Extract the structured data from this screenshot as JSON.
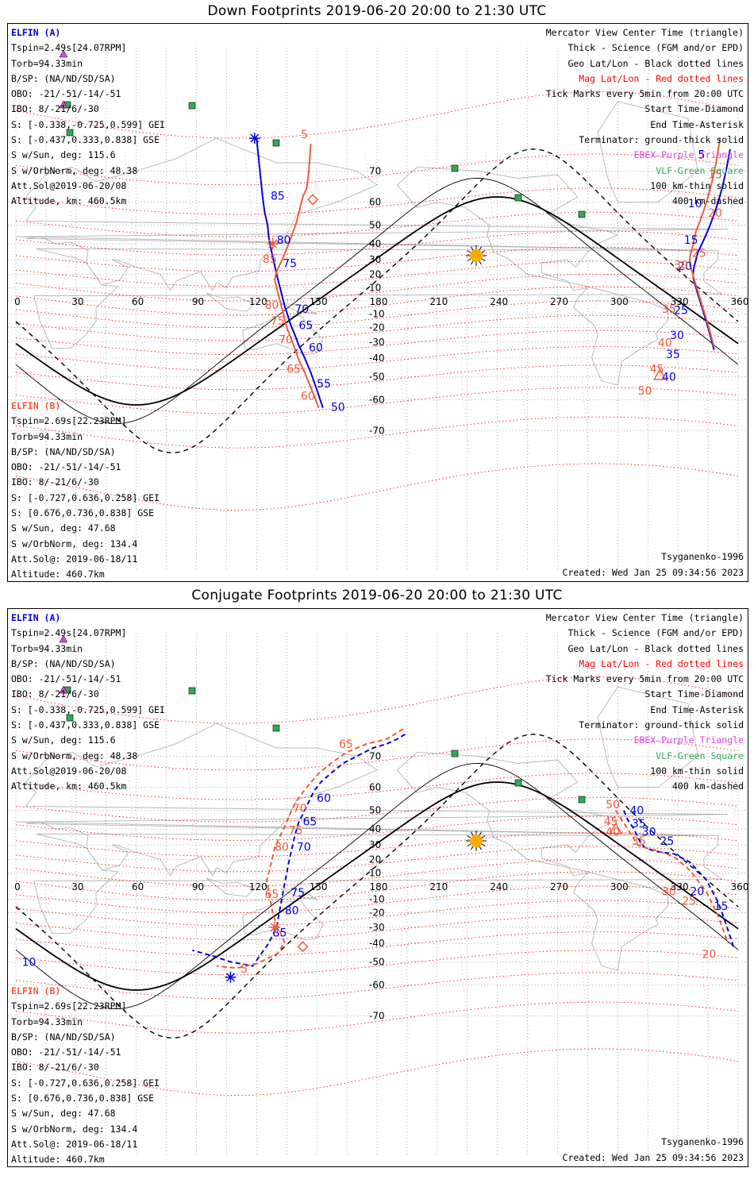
{
  "colors": {
    "elfin_a": "#0000dd",
    "elfin_b": "#f05a3c",
    "geo_grid": "#000000",
    "mag_grid": "#ff0000",
    "ebex": "#dd44dd",
    "vlf": "#33aa55",
    "sun": "#ffaa00",
    "land": "#b4b4b4"
  },
  "common": {
    "lon_ticks": [
      "0",
      "30",
      "60",
      "90",
      "120",
      "150",
      "180",
      "210",
      "240",
      "270",
      "300",
      "330",
      "360"
    ],
    "lat_ticks": [
      "70",
      "60",
      "50",
      "40",
      "30",
      "20",
      "10",
      "-10",
      "-20",
      "-30",
      "-40",
      "-50",
      "-60",
      "-70"
    ],
    "legend": [
      {
        "text": "Mercator View Center Time (triangle)",
        "color": "#000000"
      },
      {
        "text": "Thick - Science (FGM and/or EPD)",
        "color": "#000000"
      },
      {
        "text": "Geo Lat/Lon - Black dotted lines",
        "color": "#000000"
      },
      {
        "text": "Mag Lat/Lon - Red dotted lines",
        "color": "#ff0000"
      },
      {
        "text": "Tick Marks every 5min from 20:00 UTC",
        "color": "#000000"
      },
      {
        "text": "Start Time-Diamond",
        "color": "#000000"
      },
      {
        "text": "End Time-Asterisk",
        "color": "#000000"
      },
      {
        "text": "Terminator: ground-thick solid",
        "color": "#000000"
      },
      {
        "text": "EBEX-Purple Triangle",
        "color": "#dd44dd"
      },
      {
        "text": "VLF-Green Square",
        "color": "#33aa55"
      },
      {
        "text": "100 km-thin solid",
        "color": "#000000"
      },
      {
        "text": "400 km-dashed",
        "color": "#000000"
      }
    ],
    "elfin_a_info": {
      "header": "ELFIN (A)",
      "lines": [
        "Tspin=2.49s[24.07RPM]",
        "Torb=94.33min",
        "B/SP: (NA/ND/SD/SA)",
        "OBO: -21/-51/-14/-51",
        "IBO: 8/-21/6/-30",
        "S: [-0.338,-0.725,0.599] GEI",
        "S: [-0.437,0.333,0.838] GSE",
        "S w/Sun, deg: 115.6",
        "S w/OrbNorm, deg: 48.38",
        "Att.Sol@2019-06-20/08",
        "Altitude, km: 460.5km"
      ]
    },
    "elfin_b_info": {
      "header": "ELFIN (B)",
      "lines": [
        "Tspin=2.69s[22.23RPM]",
        "Torb=94.33min",
        "B/SP: (NA/ND/SD/SA)",
        "OBO: -21/-51/-14/-51",
        "IBO: 8/-21/6/-30",
        "S: [-0.727,0.636,0.258] GEI",
        "S: [0.676,0.736,0.838] GSE",
        "S w/Sun, deg: 47.68",
        "S w/OrbNorm, deg: 134.4",
        "Att.Sol@: 2019-06-18/11",
        "Altitude: 460.7km"
      ]
    },
    "model": "Tsyganenko-1996",
    "created": "Created: Wed Jan 25 09:34:56 2023"
  },
  "panels": [
    {
      "title": "Down Footprints 2019-06-20 20:00 to 21:30 UTC",
      "tracks": {
        "a1": {
          "lon": [
            120,
            121,
            122,
            123,
            124,
            125.5,
            126,
            127,
            128,
            129,
            130,
            131,
            132,
            133,
            134,
            135.5,
            137,
            139,
            141,
            144,
            147,
            150,
            153
          ],
          "lat": [
            77,
            73,
            68,
            62,
            56,
            50,
            44,
            38,
            32,
            26,
            20,
            14,
            8,
            2,
            -4,
            -11,
            -18,
            -25,
            -32,
            -40,
            -48,
            -56,
            -63
          ]
        },
        "b1": {
          "lon": [
            147,
            146,
            145,
            143,
            140,
            138,
            136,
            134,
            132,
            130,
            129,
            130,
            131,
            132,
            133,
            134,
            135,
            137,
            139,
            141,
            144,
            147,
            151
          ],
          "lat": [
            76,
            70,
            65,
            62,
            52,
            46,
            40,
            34,
            28,
            22,
            16,
            10,
            4,
            -2,
            -8,
            -14,
            -20,
            -27,
            -34,
            -41,
            -48,
            -55,
            -63
          ]
        },
        "a2": {
          "lon": [
            356,
            354,
            352,
            350,
            348,
            346,
            344,
            342,
            340,
            339,
            338,
            337.5,
            338,
            339,
            340,
            341,
            342,
            343,
            344,
            345,
            346,
            347,
            348
          ],
          "lat": [
            75,
            70,
            65,
            60,
            55,
            50,
            45,
            40,
            35,
            30,
            25,
            20,
            15,
            10,
            5,
            0,
            -5,
            -10,
            -15,
            -20,
            -25,
            -30,
            -35
          ]
        },
        "b2": {
          "lon": [
            351,
            349,
            347,
            345,
            343,
            341,
            339,
            338,
            337,
            336,
            336,
            337,
            338,
            339,
            340,
            341,
            342,
            343,
            344,
            345,
            346,
            347,
            348
          ],
          "lat": [
            77,
            72,
            67,
            62,
            57,
            52,
            47,
            42,
            37,
            32,
            27,
            22,
            17,
            12,
            7,
            2,
            -3,
            -8,
            -13,
            -18,
            -23,
            -28,
            -33
          ]
        }
      },
      "tick_labels": [
        {
          "text": "85",
          "color": "a",
          "lon": 127,
          "lat": 61
        },
        {
          "text": "80",
          "color": "a",
          "lon": 130,
          "lat": 40
        },
        {
          "text": "75",
          "color": "a",
          "lon": 133,
          "lat": 25
        },
        {
          "text": "70",
          "color": "a",
          "lon": 139,
          "lat": -9
        },
        {
          "text": "65",
          "color": "a",
          "lon": 141,
          "lat": -21
        },
        {
          "text": "60",
          "color": "a",
          "lon": 146,
          "lat": -36
        },
        {
          "text": "55",
          "color": "a",
          "lon": 150,
          "lat": -55
        },
        {
          "text": "50",
          "color": "a",
          "lon": 157,
          "lat": -64
        },
        {
          "text": "85",
          "color": "b",
          "lon": 123,
          "lat": 28
        },
        {
          "text": "80",
          "color": "b",
          "lon": 124,
          "lat": -6
        },
        {
          "text": "75",
          "color": "b",
          "lon": 127,
          "lat": -18
        },
        {
          "text": "70",
          "color": "b",
          "lon": 131,
          "lat": -31
        },
        {
          "text": "65",
          "color": "b",
          "lon": 135,
          "lat": -48
        },
        {
          "text": "60",
          "color": "b",
          "lon": 142,
          "lat": -60
        },
        {
          "text": "5",
          "color": "b",
          "lon": 142,
          "lat": 77
        },
        {
          "text": "5",
          "color": "a",
          "lon": 340,
          "lat": 73
        },
        {
          "text": "10",
          "color": "a",
          "lon": 335,
          "lat": 58
        },
        {
          "text": "15",
          "color": "a",
          "lon": 333,
          "lat": 40
        },
        {
          "text": "20",
          "color": "a",
          "lon": 330,
          "lat": 23
        },
        {
          "text": "25",
          "color": "a",
          "lon": 328,
          "lat": -10
        },
        {
          "text": "30",
          "color": "a",
          "lon": 326,
          "lat": -28
        },
        {
          "text": "35",
          "color": "a",
          "lon": 324,
          "lat": -40
        },
        {
          "text": "40",
          "color": "a",
          "lon": 322,
          "lat": -52
        },
        {
          "text": "15",
          "color": "b",
          "lon": 345,
          "lat": 68
        },
        {
          "text": "20",
          "color": "b",
          "lon": 345,
          "lat": 54
        },
        {
          "text": "25",
          "color": "b",
          "lon": 337,
          "lat": 32
        },
        {
          "text": "30",
          "color": "b",
          "lon": 328,
          "lat": 24
        },
        {
          "text": "35",
          "color": "b",
          "lon": 322,
          "lat": -9
        },
        {
          "text": "40",
          "color": "b",
          "lon": 320,
          "lat": -33
        },
        {
          "text": "45",
          "color": "b",
          "lon": 316,
          "lat": -48
        },
        {
          "text": "50",
          "color": "b",
          "lon": 310,
          "lat": -58
        }
      ],
      "markers": {
        "diamond": [
          {
            "lon": 148,
            "lat": 61,
            "c": "b"
          }
        ],
        "asterisk": [
          {
            "lon": 119,
            "lat": 77,
            "c": "a"
          },
          {
            "lon": 128,
            "lat": 40,
            "c": "b"
          }
        ],
        "triangle": [
          {
            "lon": 321,
            "lat": -49,
            "c": "b"
          }
        ]
      }
    },
    {
      "title": "Conjugate Footprints 2019-06-20 20:00 to 21:30 UTC",
      "tracks": {
        "a1": {
          "lon": [
            194,
            190,
            185,
            178,
            170,
            163,
            157,
            152,
            149,
            147,
            145,
            143,
            141,
            140,
            139,
            138,
            137,
            136,
            135,
            134,
            133,
            132,
            131,
            130,
            126,
            118,
            107,
            98,
            88
          ],
          "lat": [
            75,
            74,
            73,
            72,
            70,
            68,
            65,
            62,
            59,
            56,
            52,
            48,
            44,
            40,
            36,
            30,
            24,
            18,
            10,
            2,
            -6,
            -14,
            -22,
            -30,
            -40,
            -52,
            -50,
            -47,
            -44
          ]
        },
        "b1": {
          "lon": [
            193,
            185,
            175,
            165,
            157,
            151,
            146,
            142,
            139,
            137,
            135,
            133,
            131,
            129,
            128,
            127,
            126,
            125,
            126,
            127,
            128,
            130,
            132,
            134,
            130,
            120,
            110,
            100
          ],
          "lat": [
            76,
            74,
            73,
            71,
            68,
            65,
            61,
            57,
            53,
            49,
            44,
            39,
            34,
            28,
            22,
            16,
            10,
            4,
            -4,
            -12,
            -20,
            -28,
            -34,
            -40,
            -46,
            -51,
            -53,
            -52
          ]
        },
        "a2": {
          "lon": [
            303,
            305,
            308,
            310,
            312,
            314,
            318,
            322,
            328,
            336,
            344,
            350,
            354,
            358
          ],
          "lat": [
            50,
            45,
            40,
            35,
            30,
            28,
            26,
            25,
            24,
            18,
            5,
            -12,
            -28,
            -43
          ]
        },
        "b2": {
          "lon": [
            299,
            302,
            305,
            307,
            308,
            310,
            314,
            320,
            328,
            336,
            344,
            350,
            355
          ],
          "lat": [
            50,
            45,
            40,
            36,
            34,
            30,
            28,
            26,
            22,
            12,
            -4,
            -22,
            -40
          ]
        }
      },
      "tick_labels": [
        {
          "text": "65",
          "color": "b",
          "lon": 161,
          "lat": 72
        },
        {
          "text": "60",
          "color": "a",
          "lon": 150,
          "lat": 54
        },
        {
          "text": "70",
          "color": "b",
          "lon": 138,
          "lat": 49
        },
        {
          "text": "65",
          "color": "a",
          "lon": 143,
          "lat": 42
        },
        {
          "text": "75",
          "color": "b",
          "lon": 136,
          "lat": 37
        },
        {
          "text": "70",
          "color": "a",
          "lon": 140,
          "lat": 26
        },
        {
          "text": "80",
          "color": "b",
          "lon": 129,
          "lat": 26
        },
        {
          "text": "75",
          "color": "a",
          "lon": 137,
          "lat": -8
        },
        {
          "text": "65",
          "color": "b",
          "lon": 124,
          "lat": -9
        },
        {
          "text": "80",
          "color": "a",
          "lon": 134,
          "lat": -21
        },
        {
          "text": "85",
          "color": "a",
          "lon": 128,
          "lat": -36
        },
        {
          "text": "5",
          "color": "b",
          "lon": 112,
          "lat": -55
        },
        {
          "text": "10",
          "color": "a",
          "lon": 3,
          "lat": -52
        },
        {
          "text": "50",
          "color": "b",
          "lon": 294,
          "lat": 51
        },
        {
          "text": "40",
          "color": "a",
          "lon": 306,
          "lat": 48
        },
        {
          "text": "45",
          "color": "b",
          "lon": 293,
          "lat": 42
        },
        {
          "text": "35",
          "color": "a",
          "lon": 307,
          "lat": 41
        },
        {
          "text": "30",
          "color": "a",
          "lon": 312,
          "lat": 36
        },
        {
          "text": "40",
          "color": "b",
          "lon": 294,
          "lat": 36
        },
        {
          "text": "35",
          "color": "b",
          "lon": 307,
          "lat": 30
        },
        {
          "text": "25",
          "color": "a",
          "lon": 321,
          "lat": 30
        },
        {
          "text": "30",
          "color": "b",
          "lon": 322,
          "lat": -7
        },
        {
          "text": "20",
          "color": "a",
          "lon": 336,
          "lat": -7
        },
        {
          "text": "25",
          "color": "b",
          "lon": 332,
          "lat": -14
        },
        {
          "text": "15",
          "color": "a",
          "lon": 348,
          "lat": -18
        },
        {
          "text": "20",
          "color": "b",
          "lon": 342,
          "lat": -48
        }
      ],
      "markers": {
        "diamond": [
          {
            "lon": 143,
            "lat": -42,
            "c": "b"
          }
        ],
        "asterisk": [
          {
            "lon": 107,
            "lat": -57,
            "c": "a"
          },
          {
            "lon": 129,
            "lat": -30,
            "c": "b"
          }
        ],
        "triangle": [
          {
            "lon": 299,
            "lat": 40,
            "c": "b"
          }
        ]
      }
    }
  ]
}
